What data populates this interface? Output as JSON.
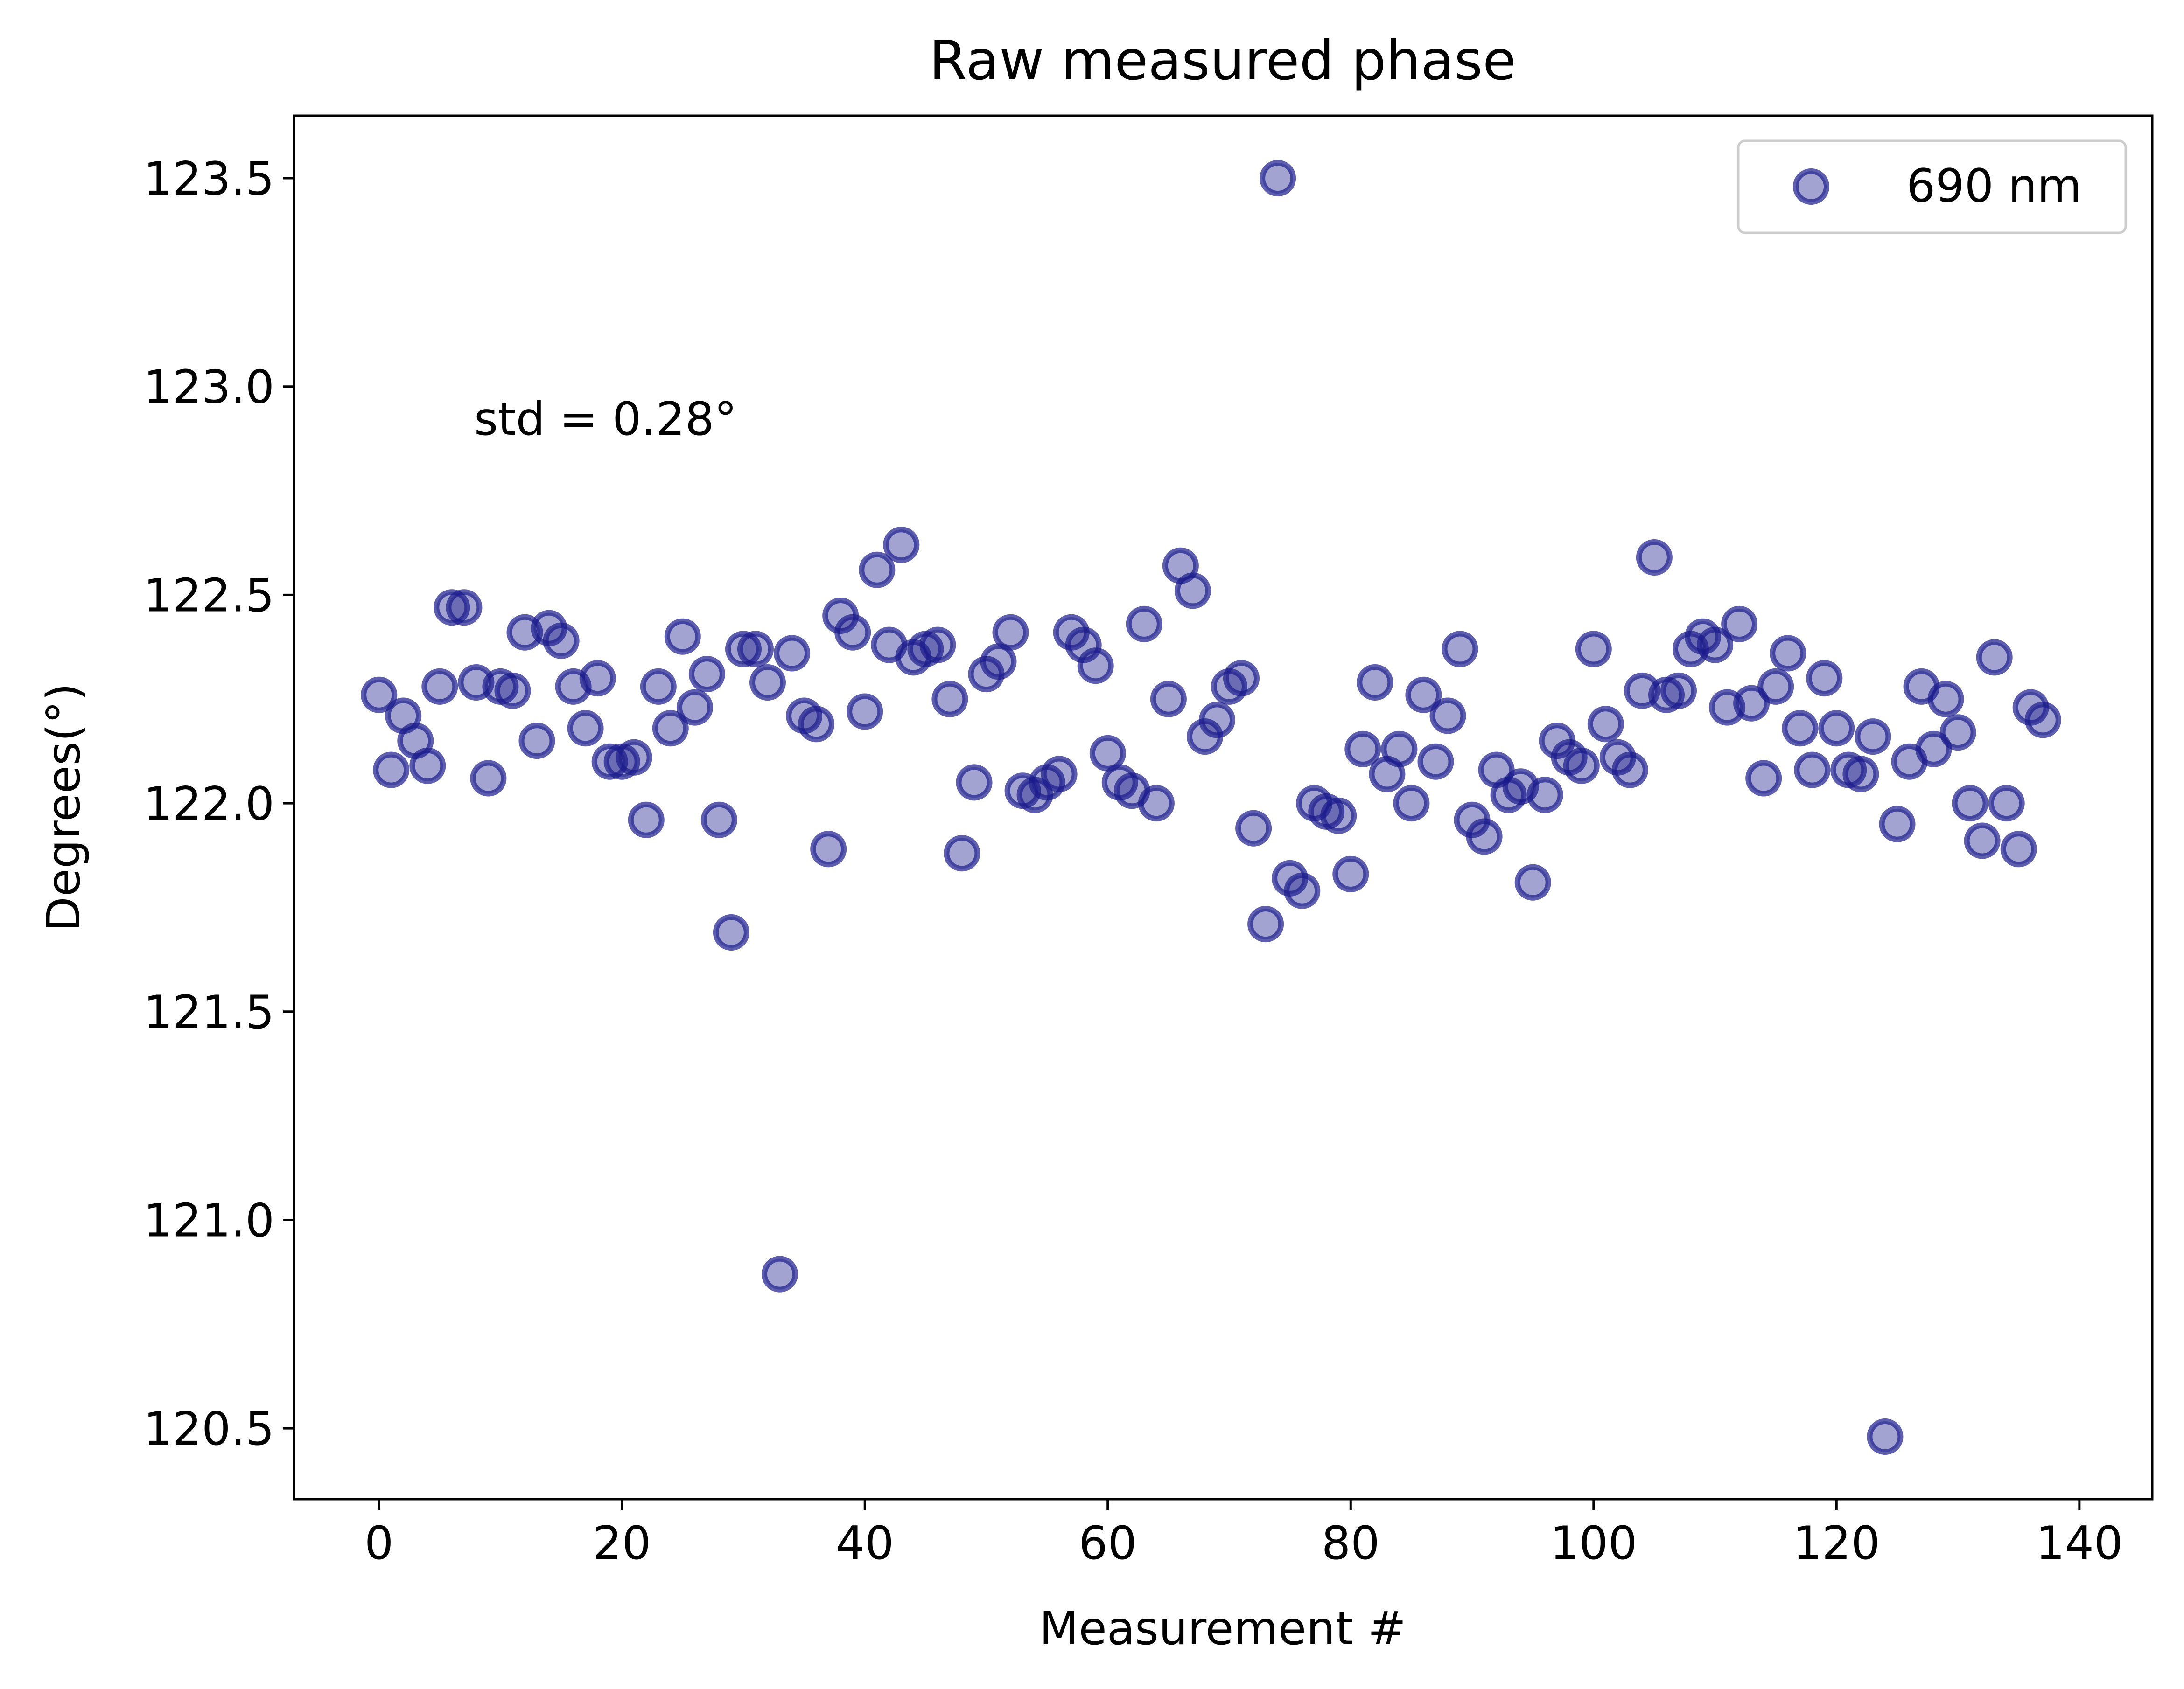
{
  "chart_data": {
    "type": "scatter",
    "title": "Raw measured phase",
    "xlabel": "Measurement #",
    "ylabel": "Degrees(°)",
    "xlim": [
      -7,
      146
    ],
    "ylim": [
      120.33,
      123.65
    ],
    "xticks": [
      0,
      20,
      40,
      60,
      80,
      100,
      120,
      140
    ],
    "yticks": [
      120.5,
      121.0,
      121.5,
      122.0,
      122.5,
      123.0,
      123.5
    ],
    "ytick_labels": [
      "120.5",
      "121.0",
      "121.5",
      "122.0",
      "122.5",
      "123.0",
      "123.5"
    ],
    "grid": false,
    "legend_position": "top-right",
    "annotation": "std = 0.28°",
    "series": [
      {
        "name": "690 nm",
        "color": "#1a1a8c",
        "x": [
          0,
          1,
          2,
          3,
          4,
          5,
          6,
          7,
          8,
          9,
          10,
          11,
          12,
          13,
          14,
          15,
          16,
          17,
          18,
          19,
          20,
          21,
          22,
          23,
          24,
          25,
          26,
          27,
          28,
          29,
          30,
          31,
          32,
          33,
          34,
          35,
          36,
          37,
          38,
          39,
          40,
          41,
          42,
          43,
          44,
          45,
          46,
          47,
          48,
          49,
          50,
          51,
          52,
          53,
          54,
          55,
          56,
          57,
          58,
          59,
          60,
          61,
          62,
          63,
          64,
          65,
          66,
          67,
          68,
          69,
          70,
          71,
          72,
          73,
          74,
          75,
          76,
          77,
          78,
          79,
          80,
          81,
          82,
          83,
          84,
          85,
          86,
          87,
          88,
          89,
          90,
          91,
          92,
          93,
          94,
          95,
          96,
          97,
          98,
          99,
          100,
          101,
          102,
          103,
          104,
          105,
          106,
          107,
          108,
          109,
          110,
          111,
          112,
          113,
          114,
          115,
          116,
          117,
          118,
          119,
          120,
          121,
          122,
          123,
          124,
          125,
          126,
          127,
          128,
          129,
          130,
          131,
          132,
          133,
          134,
          135,
          136,
          137
        ],
        "y": [
          122.26,
          122.08,
          122.21,
          122.15,
          122.09,
          122.28,
          122.47,
          122.47,
          122.29,
          122.06,
          122.28,
          122.27,
          122.41,
          122.15,
          122.42,
          122.39,
          122.28,
          122.18,
          122.3,
          122.1,
          122.1,
          122.11,
          121.96,
          122.28,
          122.18,
          122.4,
          122.23,
          122.31,
          121.96,
          121.69,
          122.37,
          122.37,
          122.29,
          120.87,
          122.36,
          122.21,
          122.19,
          121.89,
          122.45,
          122.41,
          122.22,
          122.56,
          122.38,
          122.62,
          122.35,
          122.37,
          122.38,
          122.25,
          121.88,
          122.05,
          122.31,
          122.34,
          122.41,
          122.03,
          122.02,
          122.05,
          122.07,
          122.41,
          122.38,
          122.33,
          122.12,
          122.05,
          122.03,
          122.43,
          122.0,
          122.25,
          122.57,
          122.51,
          122.16,
          122.2,
          122.28,
          122.3,
          121.94,
          121.71,
          123.5,
          121.82,
          121.79,
          122.0,
          121.98,
          121.97,
          121.83,
          122.13,
          122.29,
          122.07,
          122.13,
          122.0,
          122.26,
          122.1,
          122.21,
          122.37,
          121.96,
          121.92,
          122.08,
          122.02,
          122.04,
          121.81,
          122.02,
          122.15,
          122.11,
          122.09,
          122.37,
          122.19,
          122.11,
          122.08,
          122.27,
          122.59,
          122.26,
          122.27,
          122.37,
          122.4,
          122.38,
          122.23,
          122.43,
          122.24,
          122.06,
          122.28,
          122.36,
          122.18,
          122.08,
          122.3,
          122.18,
          122.08,
          122.07,
          122.16,
          120.48,
          121.95,
          122.1,
          122.28,
          122.13,
          122.25,
          122.17,
          122.0,
          121.91,
          122.35,
          122.0,
          121.89,
          122.23,
          122.2
        ]
      }
    ]
  }
}
